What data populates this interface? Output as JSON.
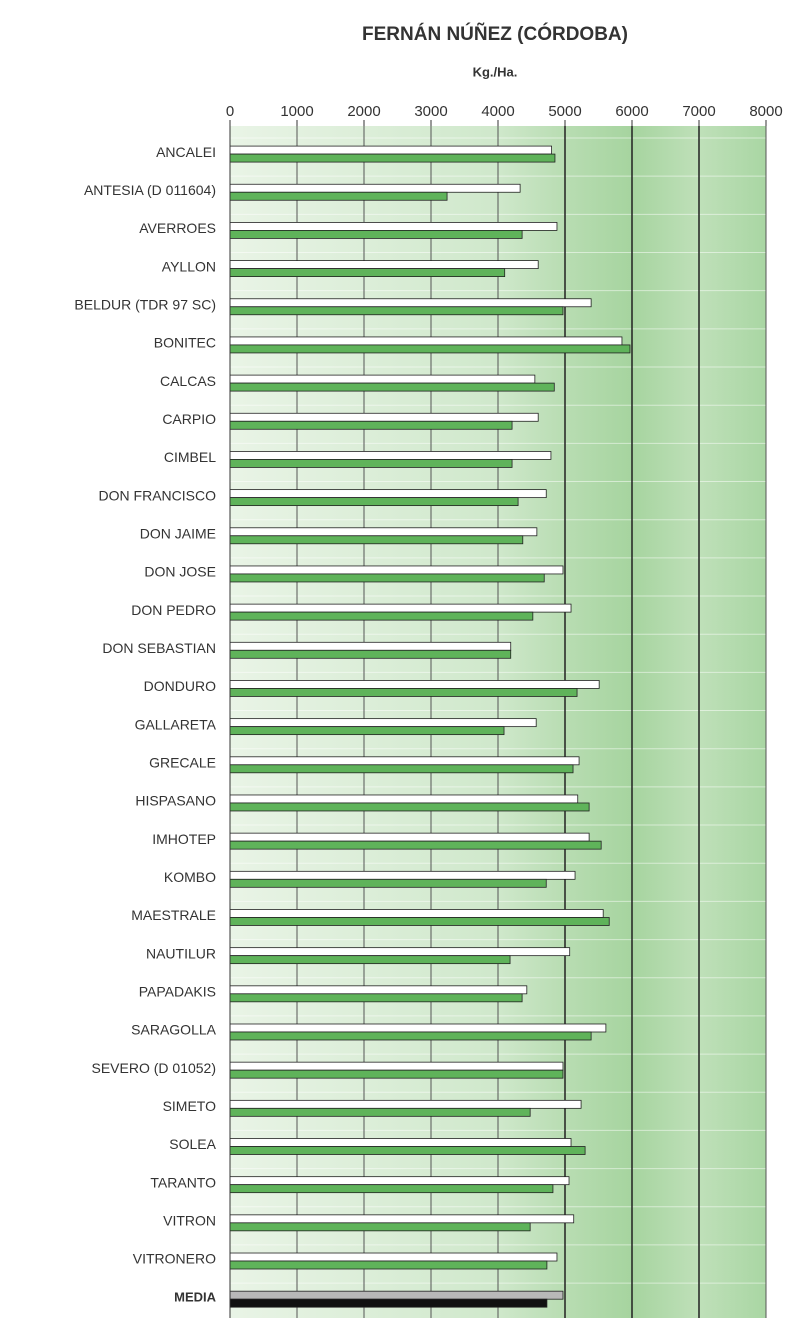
{
  "chart_data": {
    "type": "barh",
    "title": "FERNÁN NÚÑEZ (CÓRDOBA)",
    "x_label": "Kg./Ha.",
    "categories": [
      "ANCALEI",
      "ANTESIA (D 011604)",
      "AVERROES",
      "AYLLON",
      "BELDUR (TDR 97 SC)",
      "BONITEC",
      "CALCAS",
      "CARPIO",
      "CIMBEL",
      "DON FRANCISCO",
      "DON JAIME",
      "DON JOSE",
      "DON PEDRO",
      "DON SEBASTIAN",
      "DONDURO",
      "GALLARETA",
      "GRECALE",
      "HISPASANO",
      "IMHOTEP",
      "KOMBO",
      "MAESTRALE",
      "NAUTILUR",
      "PAPADAKIS",
      "SARAGOLLA",
      "SEVERO (D 01052)",
      "SIMETO",
      "SOLEA",
      "TARANTO",
      "VITRON",
      "VITRONERO",
      "MEDIA"
    ],
    "bold_last_category": true,
    "series": [
      {
        "color": "#ffffff",
        "emphasis_color": "#b8b8b8",
        "values": [
          4800,
          4330,
          4880,
          4600,
          5390,
          5850,
          4550,
          4600,
          4790,
          4720,
          4580,
          4970,
          5090,
          4190,
          5510,
          4570,
          5210,
          5190,
          5360,
          5150,
          5570,
          5070,
          4430,
          5610,
          4970,
          5240,
          5090,
          5060,
          5130,
          4880,
          4970
        ]
      },
      {
        "color": "#5fb35a",
        "emphasis_color": "#111111",
        "values": [
          4850,
          3240,
          4360,
          4100,
          4970,
          5970,
          4840,
          4210,
          4210,
          4300,
          4370,
          4690,
          4520,
          4190,
          5180,
          4090,
          5120,
          5360,
          5540,
          4720,
          5660,
          4180,
          4360,
          5390,
          4970,
          4480,
          5300,
          4820,
          4480,
          4730,
          4730
        ]
      }
    ],
    "xlim": [
      0,
      8000
    ],
    "xticks": [
      0,
      1000,
      2000,
      3000,
      4000,
      5000,
      6000,
      7000,
      8000
    ],
    "major_lines": [
      5000,
      6000,
      7000
    ],
    "grid": true
  }
}
